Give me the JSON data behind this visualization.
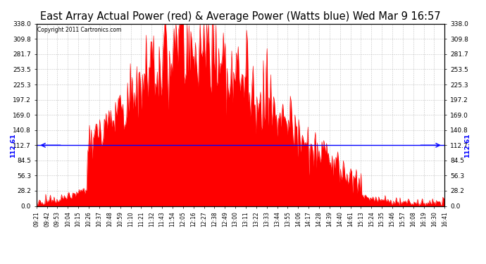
{
  "title": "East Array Actual Power (red) & Average Power (Watts blue) Wed Mar 9 16:57",
  "copyright": "Copyright 2011 Cartronics.com",
  "average_power": 112.61,
  "y_max": 338.0,
  "y_min": 0.0,
  "y_ticks": [
    0.0,
    28.2,
    56.3,
    84.5,
    112.7,
    140.8,
    169.0,
    197.2,
    225.3,
    253.5,
    281.7,
    309.8,
    338.0
  ],
  "y_tick_labels": [
    "0.0",
    "28.2",
    "56.3",
    "84.5",
    "112.7",
    "140.8",
    "169.0",
    "197.2",
    "225.3",
    "253.5",
    "281.7",
    "309.8",
    "338.0"
  ],
  "background_color": "#ffffff",
  "plot_bg_color": "#ffffff",
  "grid_color": "#aaaaaa",
  "fill_color": "#ff0000",
  "line_color": "#ff0000",
  "avg_line_color": "#0000ff",
  "title_fontsize": 10.5,
  "x_tick_labels": [
    "09:21",
    "09:42",
    "09:53",
    "10:04",
    "10:15",
    "10:26",
    "10:37",
    "10:48",
    "10:59",
    "11:10",
    "11:21",
    "11:32",
    "11:43",
    "11:54",
    "12:05",
    "12:16",
    "12:27",
    "12:38",
    "12:49",
    "13:00",
    "13:11",
    "13:22",
    "13:33",
    "13:44",
    "13:55",
    "14:06",
    "14:17",
    "14:28",
    "14:39",
    "14:40",
    "14:61",
    "15:13",
    "15:24",
    "15:35",
    "15:46",
    "15:57",
    "16:08",
    "16:19",
    "16:30",
    "16:41"
  ]
}
